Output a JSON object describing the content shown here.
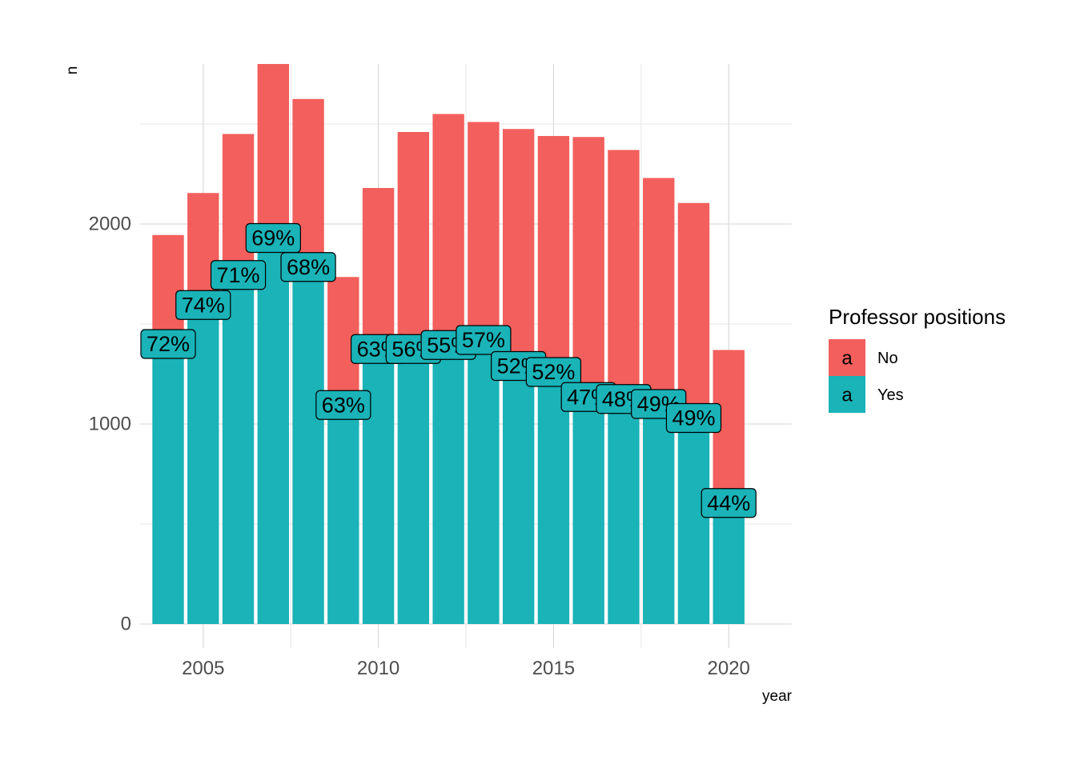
{
  "chart_data": {
    "type": "bar",
    "stacked": true,
    "xlabel": "year",
    "ylabel": "n",
    "x": [
      2004,
      2005,
      2006,
      2007,
      2008,
      2009,
      2010,
      2011,
      2012,
      2013,
      2014,
      2015,
      2016,
      2017,
      2018,
      2019,
      2020
    ],
    "xticks": [
      "2005",
      "2010",
      "2015",
      "2020"
    ],
    "xlim": [
      2003.2,
      2021.8
    ],
    "yticks": [
      "0",
      "1000",
      "2000"
    ],
    "ylim": [
      -120,
      2800
    ],
    "grid": true,
    "series": [
      {
        "name": "Yes",
        "color": "#19B3B8",
        "values": [
          1400,
          1595,
          1745,
          1930,
          1785,
          1095,
          1375,
          1375,
          1395,
          1420,
          1290,
          1260,
          1135,
          1125,
          1100,
          1030,
          605
        ]
      },
      {
        "name": "No",
        "color": "#F25F5C",
        "values": [
          545,
          560,
          705,
          870,
          840,
          640,
          805,
          1085,
          1155,
          1090,
          1185,
          1180,
          1300,
          1245,
          1130,
          1075,
          765
        ]
      }
    ],
    "labels": [
      "72%",
      "74%",
      "71%",
      "69%",
      "68%",
      "63%",
      "63%",
      "56%",
      "55%",
      "57%",
      "52%",
      "52%",
      "47%",
      "48%",
      "49%",
      "49%",
      "44%"
    ],
    "legend": {
      "title": "Professor positions",
      "position": "right",
      "key_glyph": "a",
      "entries": [
        {
          "label": "No",
          "color": "#F25F5C"
        },
        {
          "label": "Yes",
          "color": "#19B3B8"
        }
      ]
    }
  }
}
